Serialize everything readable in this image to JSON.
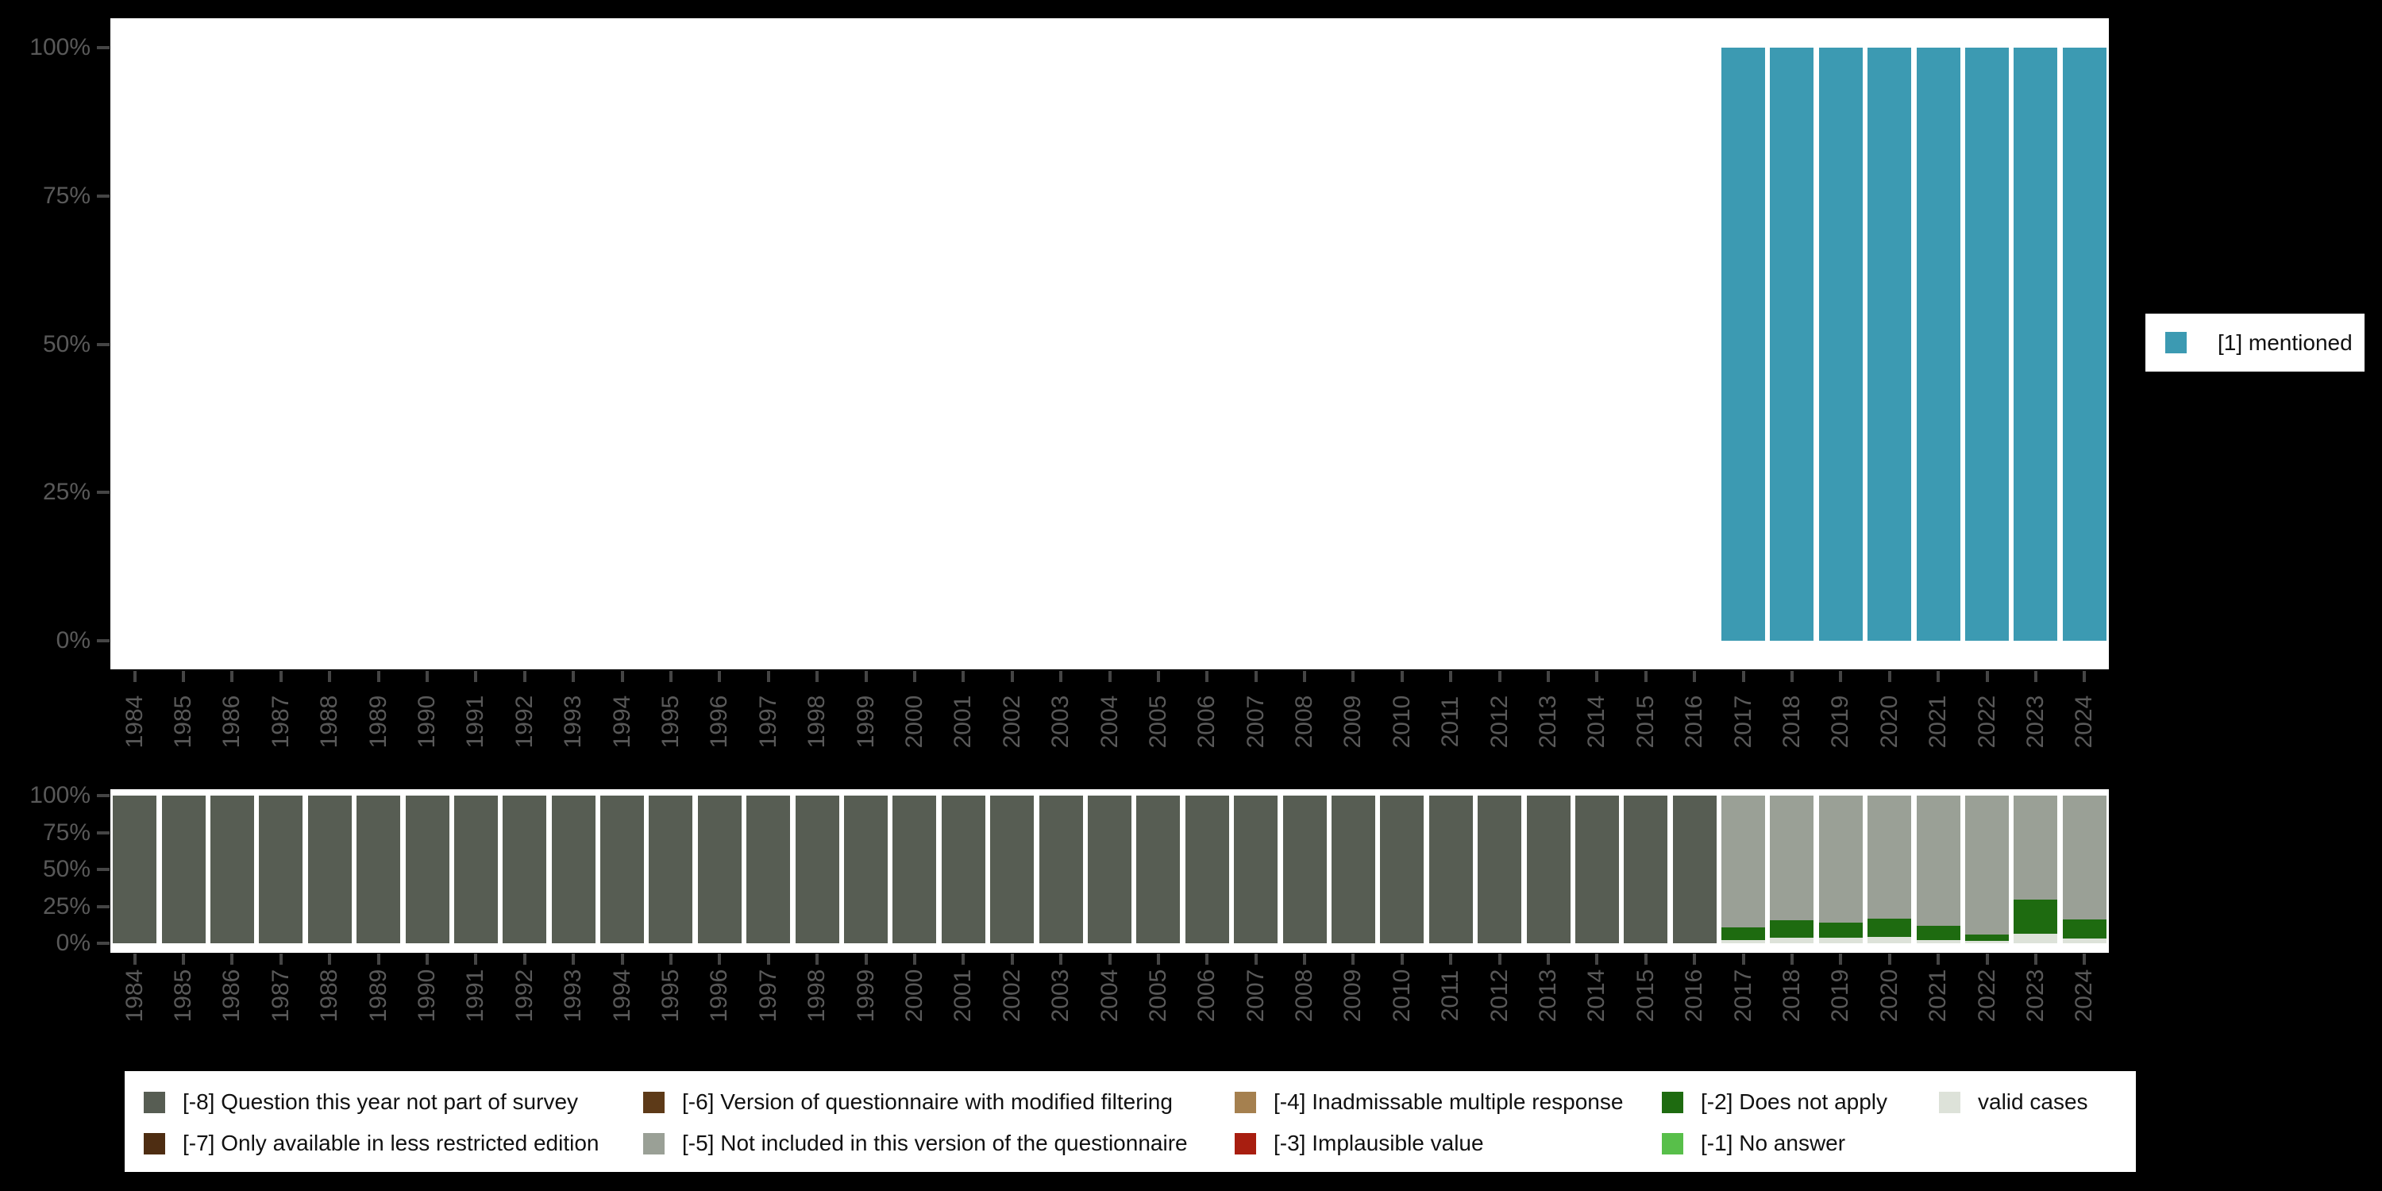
{
  "colors": {
    "background": "#000000",
    "plot_background": "#ffffff",
    "axis_text": "#595959",
    "tick": "#454545",
    "legend_text": "#111111"
  },
  "top_legend": {
    "swatch_color": "#3c9ab2",
    "label": "[1] mentioned"
  },
  "chart_data": [
    {
      "id": "frequencies",
      "type": "bar",
      "stacked": true,
      "title": "",
      "categories": [
        "1984",
        "1985",
        "1986",
        "1987",
        "1988",
        "1989",
        "1990",
        "1991",
        "1992",
        "1993",
        "1994",
        "1995",
        "1996",
        "1997",
        "1998",
        "1999",
        "2000",
        "2001",
        "2002",
        "2003",
        "2004",
        "2005",
        "2006",
        "2007",
        "2008",
        "2009",
        "2010",
        "2011",
        "2012",
        "2013",
        "2014",
        "2015",
        "2016",
        "2017",
        "2018",
        "2019",
        "2020",
        "2021",
        "2022",
        "2023",
        "2024"
      ],
      "y_tick_labels": [
        "0%",
        "25%",
        "50%",
        "75%",
        "100%"
      ],
      "ylim": [
        0,
        100
      ],
      "grid": false,
      "legend_position": "right",
      "series": [
        {
          "name": "[1] mentioned",
          "color": "#3c9ab2",
          "values": [
            null,
            null,
            null,
            null,
            null,
            null,
            null,
            null,
            null,
            null,
            null,
            null,
            null,
            null,
            null,
            null,
            null,
            null,
            null,
            null,
            null,
            null,
            null,
            null,
            null,
            null,
            null,
            null,
            null,
            null,
            null,
            null,
            null,
            100,
            100,
            100,
            100,
            100,
            100,
            100,
            100
          ]
        }
      ]
    },
    {
      "id": "missing-values",
      "type": "bar",
      "stacked": true,
      "title": "",
      "categories": [
        "1984",
        "1985",
        "1986",
        "1987",
        "1988",
        "1989",
        "1990",
        "1991",
        "1992",
        "1993",
        "1994",
        "1995",
        "1996",
        "1997",
        "1998",
        "1999",
        "2000",
        "2001",
        "2002",
        "2003",
        "2004",
        "2005",
        "2006",
        "2007",
        "2008",
        "2009",
        "2010",
        "2011",
        "2012",
        "2013",
        "2014",
        "2015",
        "2016",
        "2017",
        "2018",
        "2019",
        "2020",
        "2021",
        "2022",
        "2023",
        "2024"
      ],
      "y_tick_labels": [
        "0%",
        "25%",
        "50%",
        "75%",
        "100%"
      ],
      "ylim": [
        0,
        100
      ],
      "grid": false,
      "legend_position": "bottom",
      "series": [
        {
          "name": "[-8] Question this year not part of survey",
          "color": "#575d53",
          "values": [
            100,
            100,
            100,
            100,
            100,
            100,
            100,
            100,
            100,
            100,
            100,
            100,
            100,
            100,
            100,
            100,
            100,
            100,
            100,
            100,
            100,
            100,
            100,
            100,
            100,
            100,
            100,
            100,
            100,
            100,
            100,
            100,
            100,
            0,
            0,
            0,
            0,
            0,
            0,
            0,
            0
          ]
        },
        {
          "name": "[-7] Only available in less restricted edition",
          "color": "#4e2d12",
          "values": [
            0,
            0,
            0,
            0,
            0,
            0,
            0,
            0,
            0,
            0,
            0,
            0,
            0,
            0,
            0,
            0,
            0,
            0,
            0,
            0,
            0,
            0,
            0,
            0,
            0,
            0,
            0,
            0,
            0,
            0,
            0,
            0,
            0,
            0,
            0,
            0,
            0,
            0,
            0,
            0,
            0
          ]
        },
        {
          "name": "[-6] Version of questionnaire with modified filtering",
          "color": "#5d3a18",
          "values": [
            0,
            0,
            0,
            0,
            0,
            0,
            0,
            0,
            0,
            0,
            0,
            0,
            0,
            0,
            0,
            0,
            0,
            0,
            0,
            0,
            0,
            0,
            0,
            0,
            0,
            0,
            0,
            0,
            0,
            0,
            0,
            0,
            0,
            0,
            0,
            0,
            0,
            0,
            0,
            0,
            0
          ]
        },
        {
          "name": "[-5] Not included in this version of the questionnaire",
          "color": "#9aa096",
          "values": [
            0,
            0,
            0,
            0,
            0,
            0,
            0,
            0,
            0,
            0,
            0,
            0,
            0,
            0,
            0,
            0,
            0,
            0,
            0,
            0,
            0,
            0,
            0,
            0,
            0,
            0,
            0,
            0,
            0,
            0,
            0,
            0,
            0,
            89,
            84.5,
            86,
            83.5,
            88,
            94,
            70.5,
            84
          ]
        },
        {
          "name": "[-4] Inadmissable multiple response",
          "color": "#a5804f",
          "values": [
            0,
            0,
            0,
            0,
            0,
            0,
            0,
            0,
            0,
            0,
            0,
            0,
            0,
            0,
            0,
            0,
            0,
            0,
            0,
            0,
            0,
            0,
            0,
            0,
            0,
            0,
            0,
            0,
            0,
            0,
            0,
            0,
            0,
            0,
            0,
            0,
            0,
            0,
            0,
            0,
            0
          ]
        },
        {
          "name": "[-3] Implausible value",
          "color": "#a81e10",
          "values": [
            0,
            0,
            0,
            0,
            0,
            0,
            0,
            0,
            0,
            0,
            0,
            0,
            0,
            0,
            0,
            0,
            0,
            0,
            0,
            0,
            0,
            0,
            0,
            0,
            0,
            0,
            0,
            0,
            0,
            0,
            0,
            0,
            0,
            0,
            0,
            0,
            0,
            0,
            0,
            0,
            0
          ]
        },
        {
          "name": "[-2] Does not apply",
          "color": "#1e6b10",
          "values": [
            0,
            0,
            0,
            0,
            0,
            0,
            0,
            0,
            0,
            0,
            0,
            0,
            0,
            0,
            0,
            0,
            0,
            0,
            0,
            0,
            0,
            0,
            0,
            0,
            0,
            0,
            0,
            0,
            0,
            0,
            0,
            0,
            0,
            9,
            11.5,
            10,
            12,
            10,
            4.5,
            23,
            13
          ]
        },
        {
          "name": "[-1] No answer",
          "color": "#58bf4a",
          "values": [
            0,
            0,
            0,
            0,
            0,
            0,
            0,
            0,
            0,
            0,
            0,
            0,
            0,
            0,
            0,
            0,
            0,
            0,
            0,
            0,
            0,
            0,
            0,
            0,
            0,
            0,
            0,
            0,
            0,
            0,
            0,
            0,
            0,
            0,
            0,
            0,
            0,
            0,
            0,
            0,
            0
          ]
        },
        {
          "name": "valid cases",
          "color": "#dde2d9",
          "values": [
            0,
            0,
            0,
            0,
            0,
            0,
            0,
            0,
            0,
            0,
            0,
            0,
            0,
            0,
            0,
            0,
            0,
            0,
            0,
            0,
            0,
            0,
            0,
            0,
            0,
            0,
            0,
            0,
            0,
            0,
            0,
            0,
            0,
            2,
            4,
            4,
            4.5,
            2,
            1.5,
            6.5,
            3
          ]
        }
      ]
    }
  ],
  "bottom_legend": {
    "columns": [
      [
        0,
        1
      ],
      [
        2,
        3
      ],
      [
        4,
        5
      ],
      [
        6,
        7
      ],
      [
        8
      ]
    ]
  }
}
